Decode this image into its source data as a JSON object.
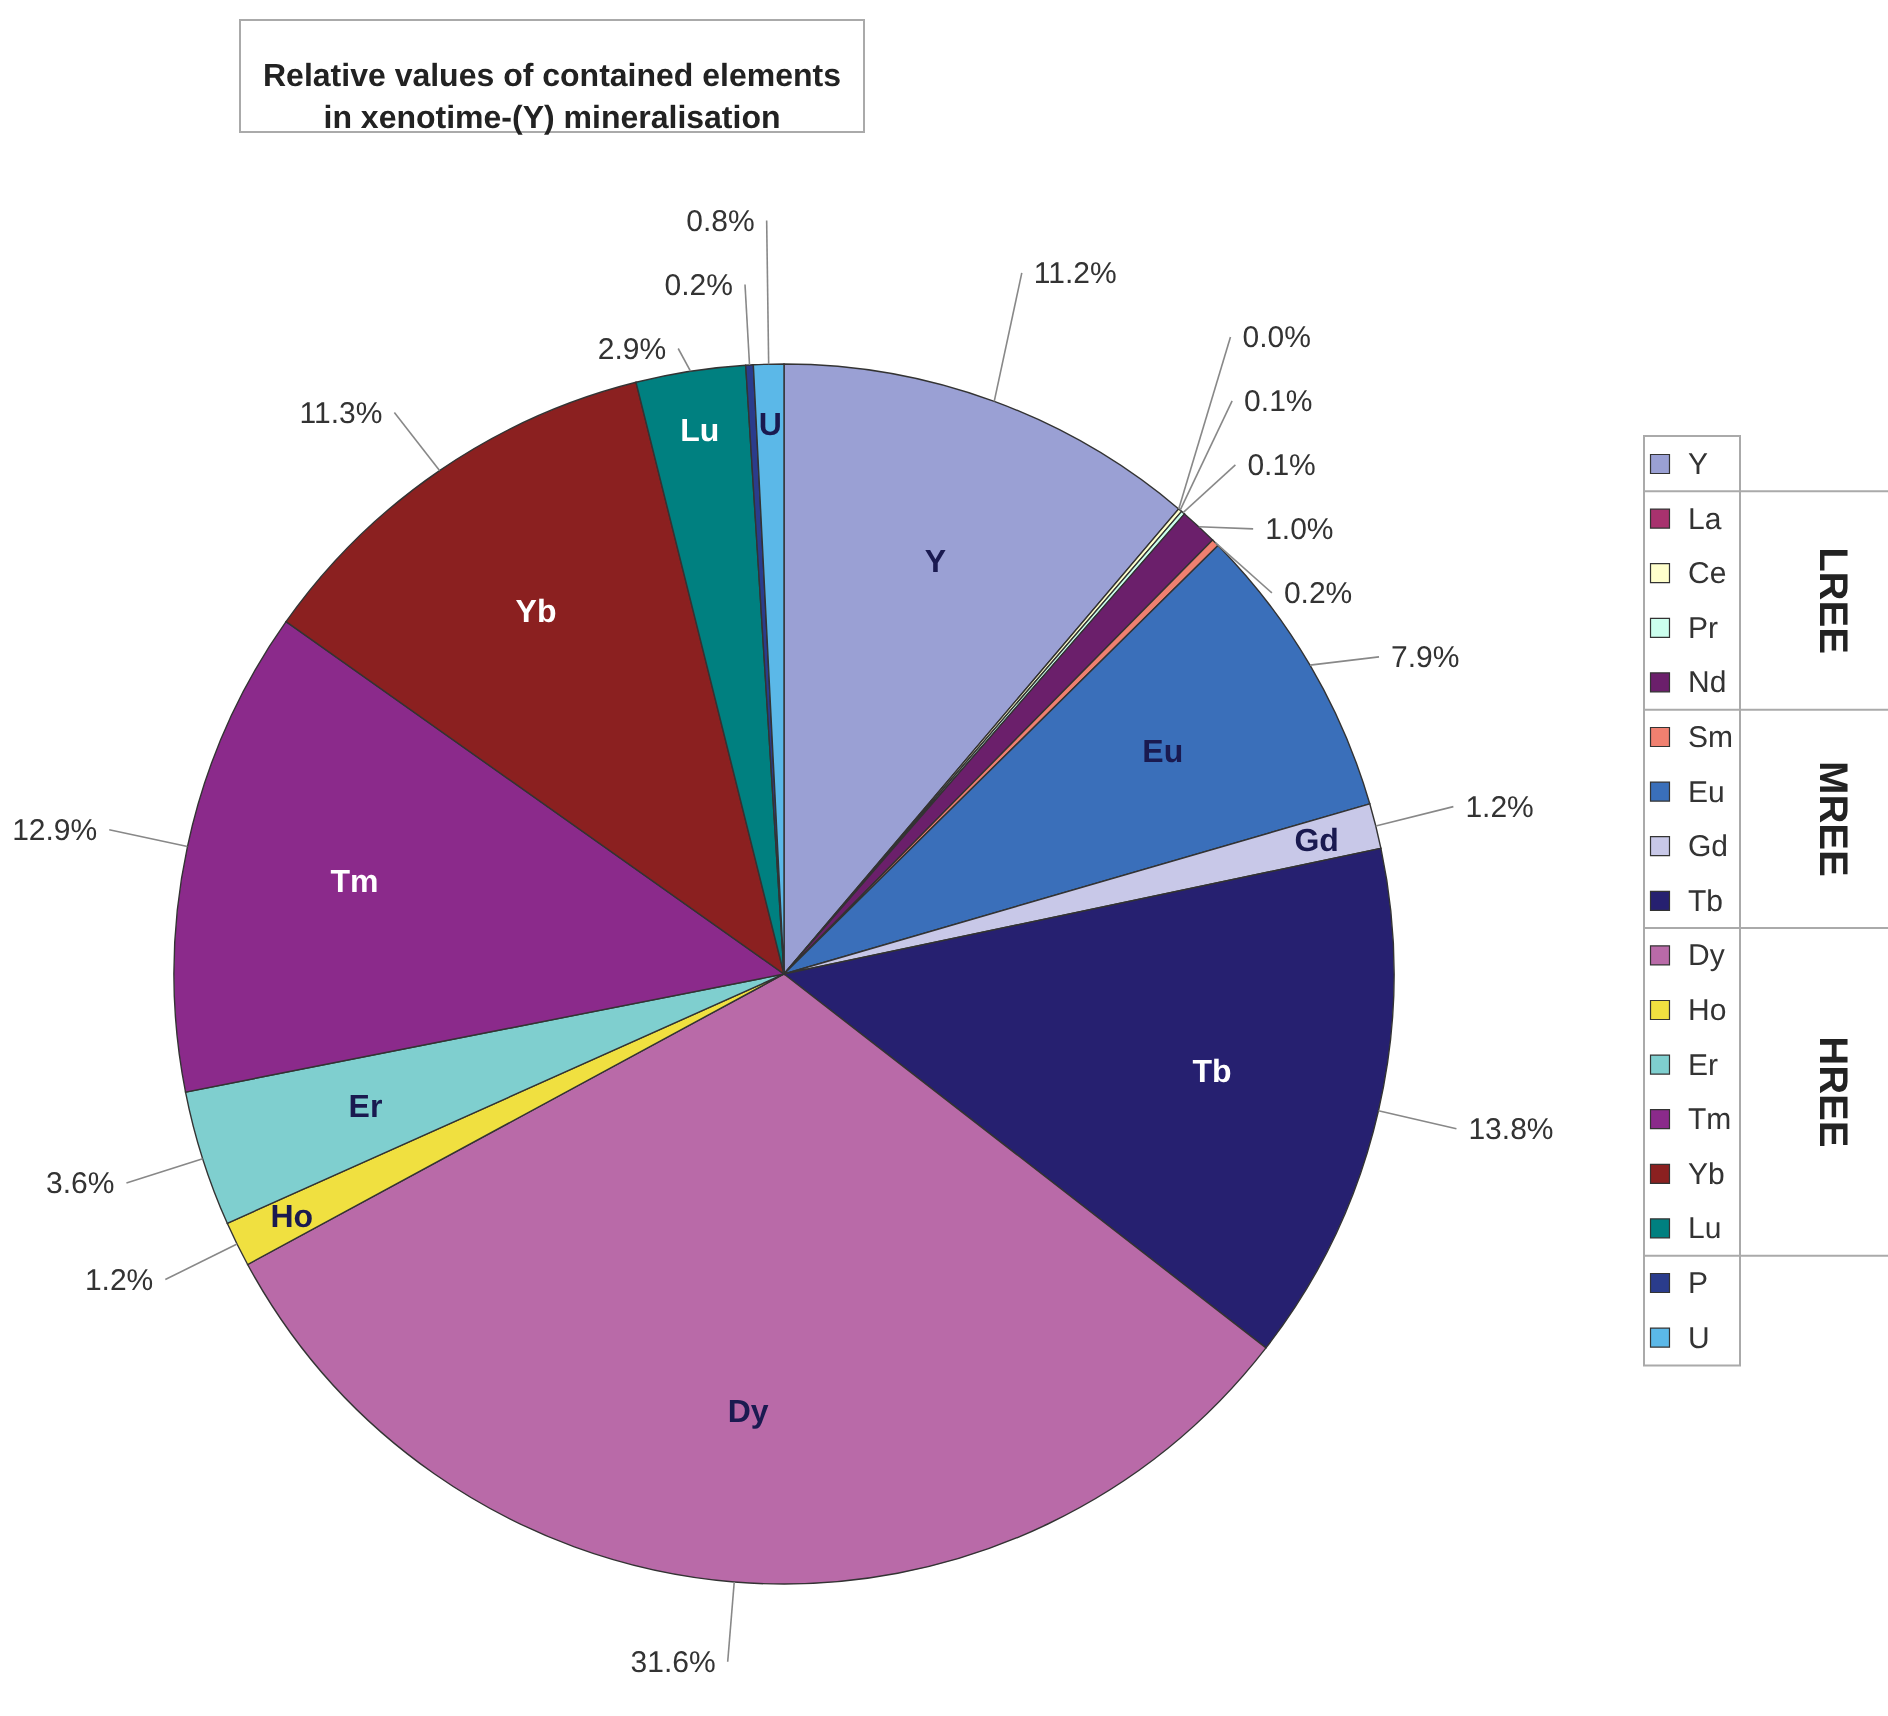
{
  "chart_data": {
    "type": "pie",
    "title": "Relative values of contained elements in xenotime-(Y) mineralisation",
    "categories": [
      "Y",
      "La",
      "Ce",
      "Pr",
      "Nd",
      "Sm",
      "Eu",
      "Gd",
      "Tb",
      "Dy",
      "Ho",
      "Er",
      "Tm",
      "Yb",
      "Lu",
      "P",
      "U"
    ],
    "values": [
      11.2,
      0.0,
      0.1,
      0.1,
      1.0,
      0.2,
      7.9,
      1.2,
      13.8,
      31.6,
      1.2,
      3.6,
      12.9,
      11.3,
      2.9,
      0.2,
      0.8
    ],
    "value_labels": [
      "11.2%",
      "0.0%",
      "0.1%",
      "0.1%",
      "1.0%",
      "0.2%",
      "7.9%",
      "1.2%",
      "13.8%",
      "31.6%",
      "1.2%",
      "3.6%",
      "12.9%",
      "11.3%",
      "2.9%",
      "0.2%",
      "0.8%"
    ],
    "colors": [
      "#9aa0d4",
      "#a8326e",
      "#ffffcc",
      "#ccffee",
      "#6b1f6b",
      "#f08070",
      "#3a6fba",
      "#c8c8e8",
      "#262070",
      "#b96aa8",
      "#f0e040",
      "#7fcfcf",
      "#8b2a8b",
      "#8b2020",
      "#008080",
      "#2a3c8c",
      "#5bb8e8"
    ],
    "legend": "right",
    "annotations": [
      {
        "text": "Y",
        "x": "Y"
      },
      {
        "text": "Eu",
        "x": "Eu"
      },
      {
        "text": "Gd",
        "x": "Gd"
      },
      {
        "text": "Tb",
        "x": "Tb"
      },
      {
        "text": "Dy",
        "x": "Dy"
      },
      {
        "text": "Ho",
        "x": "Ho"
      },
      {
        "text": "Er",
        "x": "Er"
      },
      {
        "text": "Tm",
        "x": "Tm"
      },
      {
        "text": "Yb",
        "x": "Yb"
      },
      {
        "text": "Lu",
        "x": "Lu"
      },
      {
        "text": "U",
        "x": "U"
      },
      "LREE",
      "MREE",
      "HREE"
    ]
  }
}
